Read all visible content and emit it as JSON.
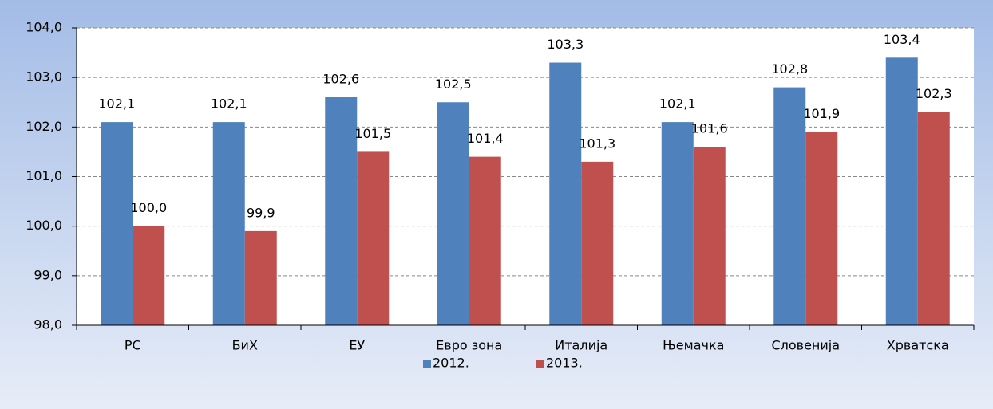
{
  "chart_data": {
    "type": "bar",
    "categories": [
      "РС",
      "БиХ",
      "ЕУ",
      "Евро зона",
      "Италија",
      "Њемачка",
      "Словенија",
      "Хрватска"
    ],
    "series": [
      {
        "name": "2012.",
        "color": "#4f81bd",
        "values": [
          102.1,
          102.1,
          102.6,
          102.5,
          103.3,
          102.1,
          102.8,
          103.4
        ],
        "value_labels": [
          "102,1",
          "102,1",
          "102,6",
          "102,5",
          "103,3",
          "102,1",
          "102,8",
          "103,4"
        ]
      },
      {
        "name": "2013.",
        "color": "#c0504d",
        "values": [
          100.0,
          99.9,
          101.5,
          101.4,
          101.3,
          101.6,
          101.9,
          102.3
        ],
        "value_labels": [
          "100,0",
          "99,9",
          "101,5",
          "101,4",
          "101,3",
          "101,6",
          "101,9",
          "102,3"
        ]
      }
    ],
    "ylim": [
      98,
      104
    ],
    "yticks": [
      {
        "value": 98,
        "label": "98,0"
      },
      {
        "value": 99,
        "label": "99,0"
      },
      {
        "value": 100,
        "label": "100,0"
      },
      {
        "value": 101,
        "label": "101,0"
      },
      {
        "value": 102,
        "label": "102,0"
      },
      {
        "value": 103,
        "label": "103,0"
      },
      {
        "value": 104,
        "label": "104,0"
      }
    ],
    "grid": true,
    "legend": "bottom"
  }
}
